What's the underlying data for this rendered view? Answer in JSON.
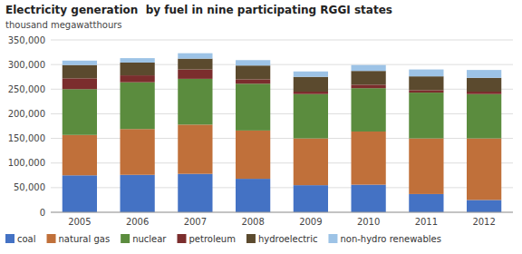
{
  "chart_data": {
    "type": "bar",
    "stacked": true,
    "title": "Electricity generation  by fuel in nine participating RGGI states",
    "subtitle": "thousand megawatthours",
    "categories": [
      "2005",
      "2006",
      "2007",
      "2008",
      "2009",
      "2010",
      "2011",
      "2012"
    ],
    "series": [
      {
        "name": "coal",
        "color": "#4472C4",
        "values": [
          75000,
          76000,
          78000,
          68000,
          55000,
          56000,
          37000,
          25000
        ]
      },
      {
        "name": "natural gas",
        "color": "#C0703A",
        "values": [
          82000,
          93000,
          100000,
          98000,
          95000,
          108000,
          113000,
          125000
        ]
      },
      {
        "name": "nuclear",
        "color": "#5B8C3E",
        "values": [
          93000,
          95000,
          93000,
          95000,
          90000,
          88000,
          93000,
          90000
        ]
      },
      {
        "name": "petroleum",
        "color": "#7B2D2D",
        "values": [
          22000,
          14000,
          19000,
          9000,
          5000,
          7000,
          5000,
          5000
        ]
      },
      {
        "name": "hydroelectric",
        "color": "#5B4A2E",
        "values": [
          27000,
          26000,
          22000,
          28000,
          30000,
          28000,
          28000,
          28000
        ]
      },
      {
        "name": "non-hydro renewables",
        "color": "#9DC3E6",
        "values": [
          9000,
          9000,
          11000,
          11000,
          11000,
          12000,
          14000,
          16000
        ]
      }
    ],
    "ylim": [
      0,
      350000
    ],
    "yticks": [
      0,
      {
        "value": 50000,
        "label": "50,000"
      },
      {
        "value": 100000,
        "label": "100,000"
      },
      {
        "value": 150000,
        "label": "150,000"
      },
      {
        "value": 200000,
        "label": "200,000"
      },
      {
        "value": 250000,
        "label": "250,000"
      },
      {
        "value": 300000,
        "label": "300,000"
      },
      {
        "value": 350000,
        "label": "350,000"
      }
    ],
    "grid": true,
    "legend": "lower left"
  }
}
